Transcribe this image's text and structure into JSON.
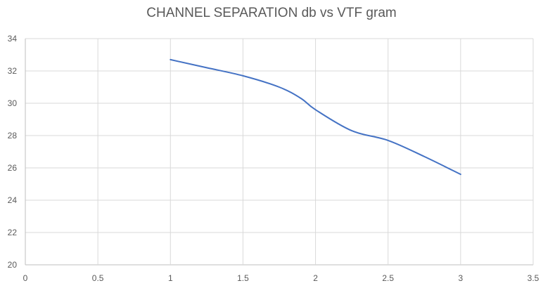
{
  "chart_data": {
    "type": "line",
    "title": "CHANNEL SEPARATION db vs  VTF gram",
    "xlabel": "",
    "ylabel": "",
    "xlim": [
      0,
      3.5
    ],
    "ylim": [
      20,
      34
    ],
    "x_ticks": [
      0,
      0.5,
      1,
      1.5,
      2,
      2.5,
      3,
      3.5
    ],
    "y_ticks": [
      20,
      22,
      24,
      26,
      28,
      30,
      32,
      34
    ],
    "x_tick_labels": [
      "0",
      "0.5",
      "1",
      "1.5",
      "2",
      "2.5",
      "3",
      "3.5"
    ],
    "y_tick_labels": [
      "20",
      "22",
      "24",
      "26",
      "28",
      "30",
      "32",
      "34"
    ],
    "grid": true,
    "series": [
      {
        "name": "Channel separation",
        "color": "#4472C4",
        "x": [
          1,
          1.25,
          1.5,
          1.75,
          1.9,
          2,
          2.25,
          2.5,
          2.75,
          3
        ],
        "y": [
          32.7,
          32.2,
          31.7,
          31.0,
          30.3,
          29.6,
          28.3,
          27.7,
          26.7,
          25.6
        ]
      }
    ]
  }
}
